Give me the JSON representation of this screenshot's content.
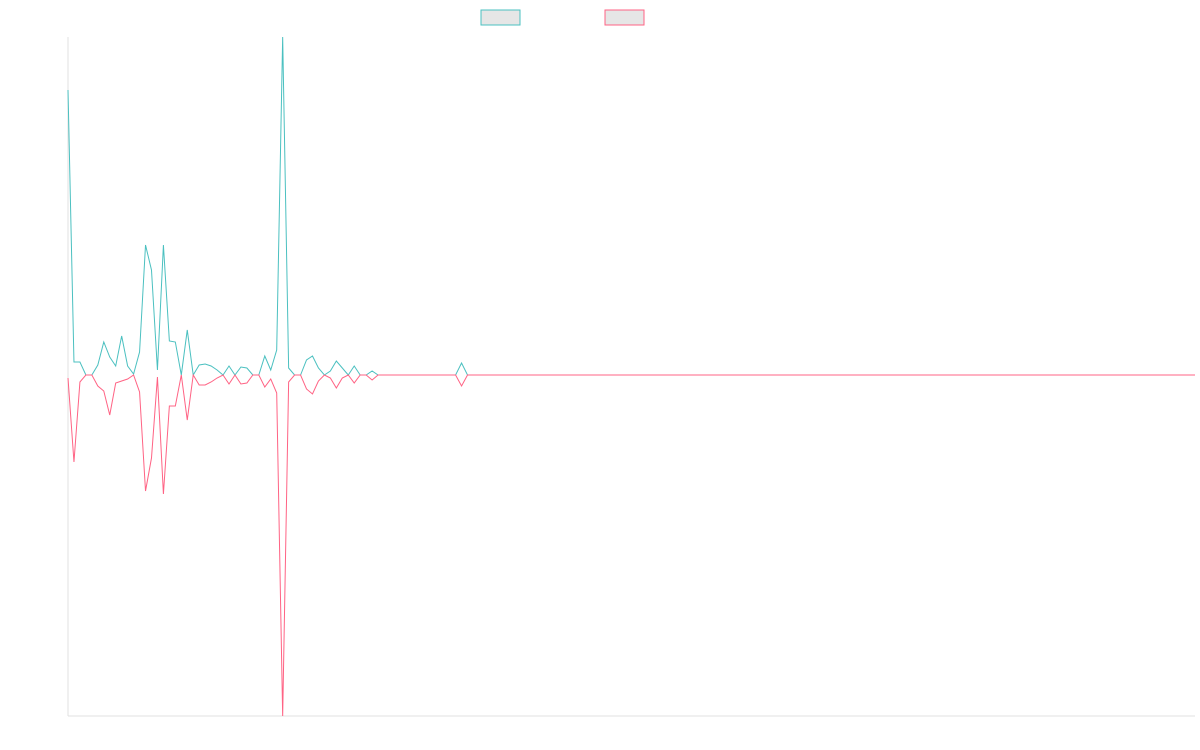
{
  "chart_data": {
    "type": "line",
    "categories": [
      null,
      null,
      null,
      null,
      null,
      null,
      null,
      null,
      null,
      null,
      null,
      null,
      null,
      null,
      null,
      null,
      null,
      null,
      null,
      null,
      null,
      null,
      null,
      null,
      null,
      null,
      null,
      null,
      null,
      null,
      null,
      null,
      null,
      null,
      null,
      null,
      null,
      null,
      null,
      null,
      null,
      null,
      null,
      null,
      null,
      null,
      null,
      null,
      null,
      null,
      null,
      null,
      null,
      null,
      null,
      null,
      null,
      null,
      null,
      null,
      null,
      null,
      null,
      null,
      null,
      null,
      null,
      null,
      null,
      null,
      null,
      null,
      null,
      null,
      null,
      null,
      null,
      null,
      null,
      null,
      null,
      null,
      null,
      null,
      null,
      null,
      null,
      null,
      null,
      null,
      null,
      null,
      null,
      null,
      null,
      null,
      null,
      null,
      null,
      null,
      null,
      null,
      null,
      null,
      null,
      null,
      null,
      null,
      null,
      null,
      null,
      null,
      null,
      null,
      null,
      null,
      null,
      null,
      null,
      null,
      null,
      null,
      null,
      null,
      null,
      null,
      null,
      null,
      null,
      null,
      null,
      null,
      null,
      null,
      null,
      null,
      null,
      null,
      null,
      null,
      null,
      null,
      null,
      null,
      null,
      null,
      null,
      null,
      null,
      null,
      null,
      null,
      null,
      null,
      null,
      null,
      null,
      null,
      null,
      null,
      null,
      null,
      null,
      null,
      null,
      null,
      null,
      null,
      null,
      null,
      null,
      null,
      null,
      null,
      null,
      null,
      null,
      null,
      null,
      null,
      null,
      null,
      null,
      null,
      null,
      null,
      null,
      null,
      null,
      null
    ],
    "series": [
      {
        "color": "#4bc0c0",
        "values": [
          285,
          13,
          13,
          0,
          0,
          10,
          33,
          18,
          9,
          39,
          9,
          1,
          23,
          130,
          105,
          5,
          130,
          34,
          33,
          0,
          45,
          0,
          10,
          11,
          9,
          5,
          0,
          9,
          0,
          8,
          7,
          0,
          0,
          19,
          5,
          25,
          338,
          7,
          0,
          0,
          15,
          19,
          7,
          0,
          4,
          14,
          7,
          0,
          9,
          0,
          0,
          4,
          0,
          0,
          0,
          0,
          0,
          0,
          0,
          0,
          0,
          0,
          0,
          0,
          0,
          0,
          12,
          0,
          0,
          0,
          0,
          0,
          0,
          0,
          0,
          0,
          0,
          0,
          0,
          0,
          0,
          0,
          0,
          0,
          0,
          0,
          0,
          0,
          0,
          0,
          0,
          0,
          0,
          0,
          0,
          0,
          0,
          0,
          0,
          0,
          0,
          0,
          0,
          0,
          0,
          0,
          0,
          0,
          0,
          0,
          0,
          0,
          0,
          0,
          0,
          0,
          0,
          0,
          0,
          0,
          0,
          0,
          0,
          0,
          0,
          0,
          0,
          0,
          0,
          0,
          0,
          0,
          0,
          0,
          0,
          0,
          0,
          0,
          0,
          0,
          0,
          0,
          0,
          0,
          0,
          0,
          0,
          0,
          0,
          0,
          0,
          0,
          0,
          0,
          0,
          0,
          0,
          0,
          0,
          0,
          0,
          0,
          0,
          0,
          0,
          0,
          0,
          0,
          0,
          0,
          0,
          0,
          0,
          0,
          0,
          0,
          0,
          0,
          0,
          0,
          0,
          0,
          0,
          0,
          0,
          0,
          0,
          0,
          0,
          0
        ]
      },
      {
        "color": "#ff6384",
        "values": [
          -3,
          -87,
          -7,
          0,
          0,
          -11,
          -16,
          -40,
          -8,
          -6,
          -4,
          0,
          -17,
          -116,
          -83,
          -2,
          -119,
          -31,
          -31,
          0,
          -45,
          0,
          -10,
          -10,
          -7,
          -3,
          0,
          -9,
          0,
          -9,
          -8,
          0,
          0,
          -12,
          -4,
          -18,
          -341,
          -7,
          0,
          0,
          -14,
          -19,
          -6,
          0,
          -3,
          -13,
          -3,
          0,
          -8,
          0,
          0,
          -5,
          0,
          0,
          0,
          0,
          0,
          0,
          0,
          0,
          0,
          0,
          0,
          0,
          0,
          0,
          -11,
          0,
          0,
          0,
          0,
          0,
          0,
          0,
          0,
          0,
          0,
          0,
          0,
          0,
          0,
          0,
          0,
          0,
          0,
          0,
          0,
          0,
          0,
          0,
          0,
          0,
          0,
          0,
          0,
          0,
          0,
          0,
          0,
          0,
          0,
          0,
          0,
          0,
          0,
          0,
          0,
          0,
          0,
          0,
          0,
          0,
          0,
          0,
          0,
          0,
          0,
          0,
          0,
          0,
          0,
          0,
          0,
          0,
          0,
          0,
          0,
          0,
          0,
          0,
          0,
          0,
          0,
          0,
          0,
          0,
          0,
          0,
          0,
          0,
          0,
          0,
          0,
          0,
          0,
          0,
          0,
          0,
          0,
          0,
          0,
          0,
          0,
          0,
          0,
          0,
          0,
          0,
          0,
          0,
          0,
          0,
          0,
          0,
          0,
          0,
          0,
          0,
          0,
          0,
          0,
          0,
          0,
          0,
          0,
          0,
          0,
          0,
          0,
          0,
          0,
          0,
          0,
          0,
          0,
          0,
          0,
          0,
          0,
          0
        ]
      }
    ],
    "ylim": [
      -341,
      338
    ]
  }
}
